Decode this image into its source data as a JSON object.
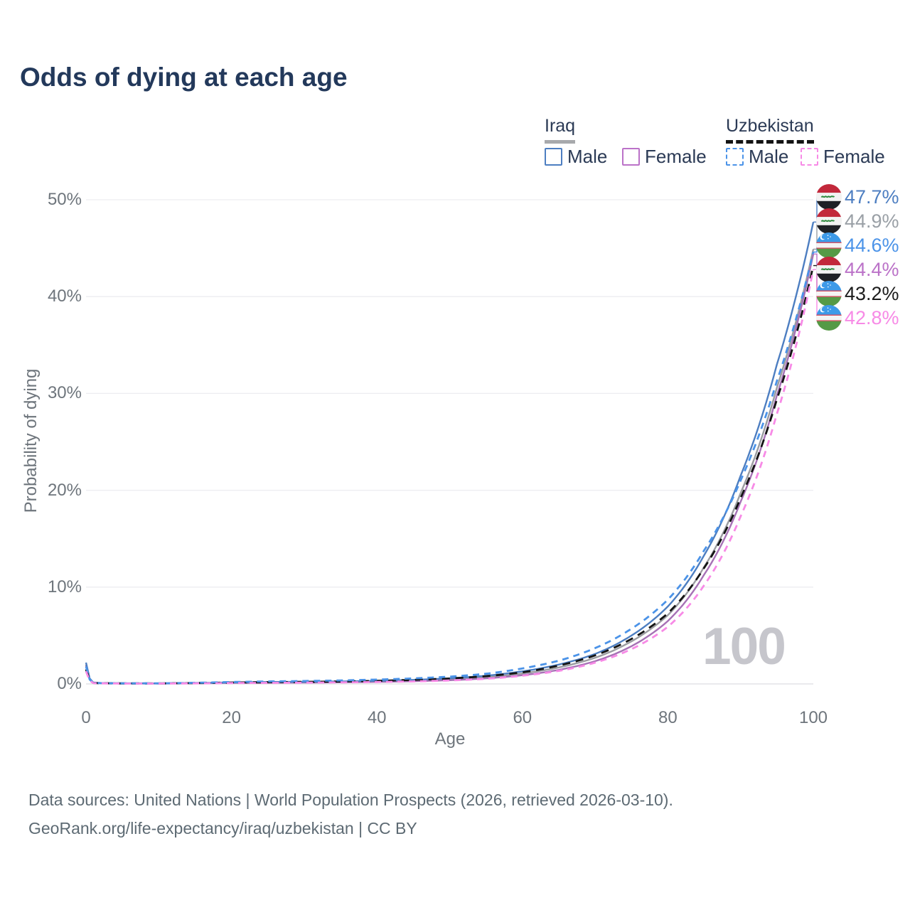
{
  "title": "Odds of dying at each age",
  "watermark": "100",
  "colors": {
    "title_text": "#23395b",
    "axis_text": "#6e757c",
    "grid_line": "#ededf1",
    "zero_line": "#dedee2",
    "legend_text": "#2b3a55",
    "watermark_text": "#c6c6cc",
    "footer_text": "#5d6a73",
    "iraq_male": "#4d7ec1",
    "iraq_both": "#9b9ca1",
    "iraq_female": "#a671b5",
    "uzbekistan_male": "#4b93e8",
    "uzbekistan_both": "#141414",
    "uzbekistan_female": "#f78ae6"
  },
  "legend": {
    "groups": [
      {
        "id": "iraq",
        "label": "Iraq",
        "line_style": "solid",
        "underline_color": "#a7a9ac",
        "items": [
          {
            "id": "iraq-male",
            "label": "Male",
            "color": "#4d7ec1",
            "box_style": "solid"
          },
          {
            "id": "iraq-female",
            "label": "Female",
            "color": "#bb72c8",
            "box_style": "solid"
          }
        ]
      },
      {
        "id": "uzbekistan",
        "label": "Uzbekistan",
        "line_style": "dashed",
        "underline_color": "#141414",
        "items": [
          {
            "id": "uzbekistan-male",
            "label": "Male",
            "color": "#4b93e8",
            "box_style": "dashed"
          },
          {
            "id": "uzbekistan-female",
            "label": "Female",
            "color": "#f78ae6",
            "box_style": "dashed"
          }
        ]
      }
    ]
  },
  "chart_data": {
    "type": "line",
    "title": "Odds of dying at each age",
    "xlabel": "Age",
    "ylabel": "Probability of dying",
    "xlim": [
      0,
      100
    ],
    "ylim_pct": [
      0,
      50
    ],
    "x_ticks": [
      0,
      20,
      40,
      60,
      80,
      100
    ],
    "y_ticks_pct": [
      0,
      10,
      20,
      30,
      40,
      50
    ],
    "y_tick_labels": [
      "0%",
      "10%",
      "20%",
      "30%",
      "40%",
      "50%"
    ],
    "grid": true,
    "legend_position": "top-right",
    "ages": [
      0,
      1,
      2,
      5,
      10,
      15,
      20,
      25,
      30,
      35,
      40,
      45,
      50,
      55,
      60,
      65,
      70,
      75,
      80,
      85,
      90,
      95,
      100
    ],
    "series": [
      {
        "key": "iraq-male",
        "name": "Iraq Male",
        "country": "iraq",
        "sex": "male",
        "style": "solid",
        "color": "#4d7ec1",
        "dash": null,
        "end_value_pct": 47.7,
        "values_pct": [
          2.2,
          0.15,
          0.1,
          0.07,
          0.06,
          0.1,
          0.16,
          0.2,
          0.22,
          0.26,
          0.32,
          0.42,
          0.58,
          0.85,
          1.3,
          2.0,
          3.1,
          5.0,
          8.0,
          13.3,
          21.5,
          33.0,
          47.7
        ]
      },
      {
        "key": "iraq-both",
        "name": "Iraq Both sexes",
        "country": "iraq",
        "sex": "both",
        "style": "solid",
        "color": "#9b9ca1",
        "dash": null,
        "end_value_pct": 44.9,
        "values_pct": [
          2.0,
          0.13,
          0.09,
          0.06,
          0.05,
          0.09,
          0.13,
          0.16,
          0.18,
          0.21,
          0.26,
          0.34,
          0.47,
          0.7,
          1.08,
          1.7,
          2.7,
          4.4,
          7.1,
          12.1,
          19.7,
          30.6,
          44.9
        ]
      },
      {
        "key": "iraq-female",
        "name": "Iraq Female",
        "country": "iraq",
        "sex": "female",
        "style": "solid",
        "color": "#a671b5",
        "dash": null,
        "end_value_pct": 44.4,
        "values_pct": [
          1.9,
          0.12,
          0.08,
          0.05,
          0.04,
          0.07,
          0.1,
          0.12,
          0.14,
          0.17,
          0.21,
          0.28,
          0.38,
          0.57,
          0.9,
          1.45,
          2.35,
          3.9,
          6.5,
          11.3,
          18.8,
          29.8,
          44.4
        ]
      },
      {
        "key": "uzbekistan-male",
        "name": "Uzbekistan Male",
        "country": "uzbekistan",
        "sex": "male",
        "style": "dashed",
        "color": "#4b93e8",
        "dash": "9 7",
        "end_value_pct": 44.6,
        "values_pct": [
          1.8,
          0.12,
          0.08,
          0.06,
          0.06,
          0.12,
          0.2,
          0.26,
          0.3,
          0.36,
          0.45,
          0.57,
          0.75,
          1.05,
          1.6,
          2.4,
          3.7,
          5.7,
          8.7,
          13.8,
          21.0,
          31.3,
          44.6
        ]
      },
      {
        "key": "uzbekistan-both",
        "name": "Uzbekistan Both sexes",
        "country": "uzbekistan",
        "sex": "both",
        "style": "dashed",
        "color": "#141414",
        "dash": "11 8",
        "end_value_pct": 43.2,
        "values_pct": [
          1.5,
          0.1,
          0.07,
          0.05,
          0.05,
          0.09,
          0.14,
          0.18,
          0.21,
          0.25,
          0.32,
          0.42,
          0.56,
          0.8,
          1.2,
          1.9,
          2.95,
          4.65,
          7.3,
          12.0,
          19.2,
          29.4,
          43.2
        ]
      },
      {
        "key": "uzbekistan-female",
        "name": "Uzbekistan Female",
        "country": "uzbekistan",
        "sex": "female",
        "style": "dashed",
        "color": "#f78ae6",
        "dash": "9 7",
        "end_value_pct": 42.8,
        "values_pct": [
          1.3,
          0.09,
          0.06,
          0.04,
          0.04,
          0.06,
          0.09,
          0.11,
          0.13,
          0.16,
          0.2,
          0.26,
          0.36,
          0.53,
          0.85,
          1.35,
          2.2,
          3.6,
          5.9,
          10.2,
          17.3,
          27.9,
          42.8
        ]
      }
    ],
    "end_labels": [
      {
        "flag": "iraq",
        "text": "47.7%",
        "color": "#4d7ec1",
        "series_key": "iraq-male"
      },
      {
        "flag": "iraq",
        "text": "44.9%",
        "color": "#9aa0a6",
        "series_key": "iraq-both"
      },
      {
        "flag": "uzbekistan",
        "text": "44.6%",
        "color": "#4b93e8",
        "series_key": "uzbekistan-male"
      },
      {
        "flag": "iraq",
        "text": "44.4%",
        "color": "#bb72c8",
        "series_key": "iraq-female"
      },
      {
        "flag": "uzbekistan",
        "text": "43.2%",
        "color": "#1c1c1c",
        "series_key": "uzbekistan-both"
      },
      {
        "flag": "uzbekistan",
        "text": "42.8%",
        "color": "#f78ae6",
        "series_key": "uzbekistan-female"
      }
    ]
  },
  "footer": {
    "line1": "Data sources: United Nations | World Population Prospects (2026, retrieved 2026-03-10).",
    "line2": "GeoRank.org/life-expectancy/iraq/uzbekistan | CC BY"
  }
}
